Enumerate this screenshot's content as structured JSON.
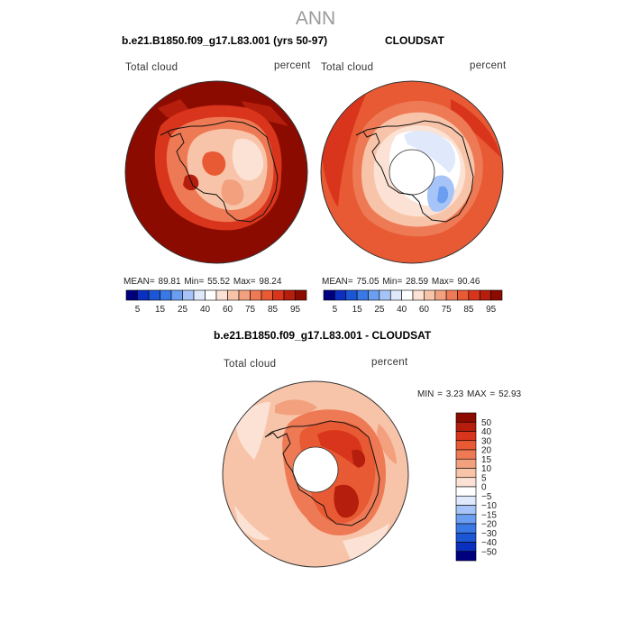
{
  "title": "ANN",
  "panels": [
    {
      "title": "b.e21.B1850.f09_g17.L83.001 (yrs 50-97)",
      "variable": "Total cloud",
      "units": "percent",
      "stats": {
        "mean_label": "MEAN=",
        "mean": "89.81",
        "min_label": "Min=",
        "min": "55.52",
        "max_label": "Max=",
        "max": "98.24"
      }
    },
    {
      "title": "CLOUDSAT",
      "variable": "Total cloud",
      "units": "percent",
      "stats": {
        "mean_label": "MEAN=",
        "mean": "75.05",
        "min_label": "Min=",
        "min": "28.59",
        "max_label": "Max=",
        "max": "90.46"
      }
    },
    {
      "title": "b.e21.B1850.f09_g17.L83.001 - CLOUDSAT",
      "variable": "Total cloud",
      "units": "percent",
      "stats": {
        "min_label": "MIN =",
        "min": "3.23",
        "max_label": "MAX =",
        "max": "52.93"
      }
    }
  ],
  "chart_data": [
    {
      "type": "heatmap",
      "projection": "south polar stereographic",
      "colorbar": {
        "orientation": "horizontal",
        "levels": [
          "5",
          "15",
          "25",
          "40",
          "60",
          "75",
          "85",
          "95"
        ],
        "colors": [
          "#00007f",
          "#0b2fbf",
          "#1b56d4",
          "#3a78e6",
          "#6b9ef0",
          "#a6c4f7",
          "#dfe9fb",
          "#ffffff",
          "#fbe2d4",
          "#f8c4a9",
          "#f2a07e",
          "#ee7a55",
          "#e85a33",
          "#d9351c",
          "#b51e0c",
          "#8c0b00"
        ],
        "description_min": 55.52,
        "description_max": 98.24
      }
    },
    {
      "type": "heatmap",
      "projection": "south polar stereographic",
      "colorbar": {
        "orientation": "horizontal",
        "levels": [
          "5",
          "15",
          "25",
          "40",
          "60",
          "75",
          "85",
          "95"
        ],
        "colors": [
          "#00007f",
          "#0b2fbf",
          "#1b56d4",
          "#3a78e6",
          "#6b9ef0",
          "#a6c4f7",
          "#dfe9fb",
          "#ffffff",
          "#fbe2d4",
          "#f8c4a9",
          "#f2a07e",
          "#ee7a55",
          "#e85a33",
          "#d9351c",
          "#b51e0c",
          "#8c0b00"
        ]
      }
    },
    {
      "type": "heatmap",
      "projection": "south polar stereographic",
      "colorbar": {
        "orientation": "vertical",
        "levels": [
          "50",
          "40",
          "30",
          "20",
          "15",
          "10",
          "5",
          "0",
          "−5",
          "−10",
          "−15",
          "−20",
          "−30",
          "−40",
          "−50"
        ],
        "colors": [
          "#8c0b00",
          "#b51e0c",
          "#d9351c",
          "#e85a33",
          "#ee7a55",
          "#f2a07e",
          "#f8c4a9",
          "#fbe2d4",
          "#ffffff",
          "#dfe9fb",
          "#a6c4f7",
          "#6b9ef0",
          "#3a78e6",
          "#1b56d4",
          "#0b2fbf",
          "#00007f"
        ]
      }
    }
  ]
}
